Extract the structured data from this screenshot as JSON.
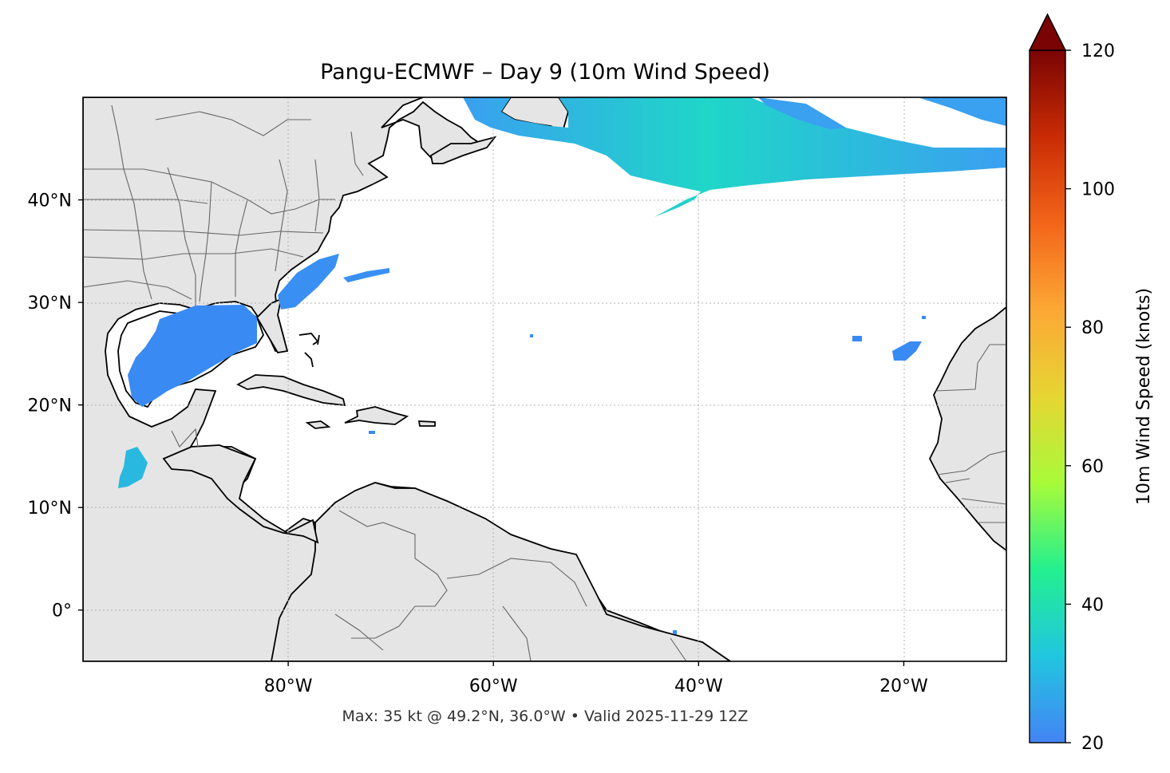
{
  "title": "Pangu-ECMWF – Day 9 (10m Wind Speed)",
  "caption": "Max: 35 kt @ 49.2°N, 36.0°W • Valid 2025-11-29 12Z",
  "map": {
    "lon_range": [
      -100,
      -10
    ],
    "lat_range": [
      -5,
      50
    ],
    "lat_ticks": [
      {
        "value": 40,
        "label": "40°N"
      },
      {
        "value": 30,
        "label": "30°N"
      },
      {
        "value": 20,
        "label": "20°N"
      },
      {
        "value": 10,
        "label": "10°N"
      },
      {
        "value": 0,
        "label": "0°"
      }
    ],
    "lon_ticks": [
      {
        "value": -80,
        "label": "80°W"
      },
      {
        "value": -60,
        "label": "60°W"
      },
      {
        "value": -40,
        "label": "40°W"
      },
      {
        "value": -20,
        "label": "20°W"
      }
    ],
    "gridlines": true,
    "land_color": "#e5e5e5",
    "ocean_color": "#ffffff",
    "coastline_color": "#000000",
    "border_color": "#666666"
  },
  "colorbar": {
    "label": "10m Wind Speed (knots)",
    "range": [
      20,
      120
    ],
    "extend": "max",
    "ticks": [
      {
        "value": 20,
        "label": "20"
      },
      {
        "value": 40,
        "label": "40"
      },
      {
        "value": 60,
        "label": "60"
      },
      {
        "value": 80,
        "label": "80"
      },
      {
        "value": 100,
        "label": "100"
      },
      {
        "value": 120,
        "label": "120"
      }
    ],
    "colormap": "turbo",
    "stops": [
      "#4484f5",
      "#21c6e0",
      "#23f08f",
      "#a8fb39",
      "#e6d533",
      "#fca835",
      "#f36519",
      "#c92c05",
      "#7a0403"
    ]
  },
  "wind_max": {
    "speed_kt": 35,
    "lat": 49.2,
    "lon": -36.0
  }
}
